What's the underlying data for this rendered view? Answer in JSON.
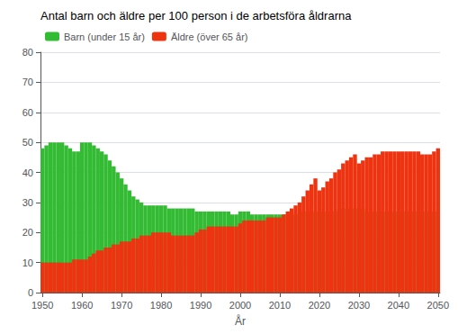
{
  "chart_data": {
    "type": "bar",
    "title": "Antal barn och äldre per 100 person i de arbetsföra åldrarna",
    "xlabel": "År",
    "stacked": true,
    "grid": true,
    "legend": "upper left",
    "x": [
      1950,
      1951,
      1952,
      1953,
      1954,
      1955,
      1956,
      1957,
      1958,
      1959,
      1960,
      1961,
      1962,
      1963,
      1964,
      1965,
      1966,
      1967,
      1968,
      1969,
      1970,
      1971,
      1972,
      1973,
      1974,
      1975,
      1976,
      1977,
      1978,
      1979,
      1980,
      1981,
      1982,
      1983,
      1984,
      1985,
      1986,
      1987,
      1988,
      1989,
      1990,
      1991,
      1992,
      1993,
      1994,
      1995,
      1996,
      1997,
      1998,
      1999,
      2000,
      2001,
      2002,
      2003,
      2004,
      2005,
      2006,
      2007,
      2008,
      2009,
      2010,
      2011,
      2012,
      2013,
      2014,
      2015,
      2016,
      2017,
      2018,
      2019,
      2020,
      2021,
      2022,
      2023,
      2024,
      2025,
      2026,
      2027,
      2028,
      2029,
      2030,
      2031,
      2032,
      2033,
      2034,
      2035,
      2036,
      2037,
      2038,
      2039,
      2040,
      2041,
      2042,
      2043,
      2044,
      2045,
      2046,
      2047,
      2048,
      2049,
      2050
    ],
    "series": [
      {
        "name": "Barn (under 15 år)",
        "color": "#33bb33",
        "values": [
          48,
          49,
          50,
          50,
          50,
          50,
          49,
          48,
          47,
          47,
          50,
          50,
          50,
          49,
          48,
          47,
          46,
          44,
          42,
          40,
          38,
          36,
          34,
          32,
          31,
          30,
          29,
          29,
          29,
          29,
          29,
          29,
          28,
          28,
          28,
          28,
          28,
          28,
          28,
          27,
          27,
          27,
          27,
          27,
          27,
          27,
          27,
          27,
          26,
          26,
          27,
          27,
          27,
          26,
          26,
          26,
          26,
          26,
          26,
          26,
          26,
          26,
          26,
          26,
          26,
          26,
          27,
          27,
          27,
          27,
          27,
          27,
          27,
          27,
          27,
          28,
          28,
          28,
          28,
          28,
          28,
          28,
          27,
          27,
          27,
          27,
          27,
          27,
          27,
          27,
          27,
          27,
          27,
          27,
          27,
          27,
          27,
          27,
          27,
          27,
          27
        ]
      },
      {
        "name": "Äldre (över 65 år)",
        "color": "#ee3311",
        "values": [
          10,
          10,
          10,
          10,
          10,
          10,
          10,
          10,
          11,
          11,
          11,
          11,
          12,
          13,
          14,
          14,
          15,
          15,
          16,
          16,
          17,
          17,
          17,
          18,
          18,
          19,
          19,
          19,
          20,
          20,
          20,
          20,
          20,
          19,
          19,
          19,
          19,
          19,
          19,
          20,
          21,
          21,
          22,
          22,
          22,
          22,
          22,
          22,
          22,
          22,
          23,
          24,
          24,
          24,
          24,
          24,
          24,
          25,
          25,
          25,
          25,
          26,
          27,
          28,
          29,
          30,
          32,
          34,
          36,
          38,
          34,
          35,
          37,
          38,
          40,
          41,
          43,
          44,
          45,
          46,
          43,
          44,
          45,
          45,
          46,
          46,
          47,
          47,
          47,
          47,
          47,
          47,
          47,
          47,
          47,
          47,
          46,
          46,
          46,
          47,
          48
        ]
      }
    ],
    "xlim": [
      1949.5,
      2050.5
    ],
    "xticks": [
      1950,
      1960,
      1970,
      1980,
      1990,
      2000,
      2010,
      2020,
      2030,
      2040,
      2050
    ],
    "ylim": [
      0,
      80
    ],
    "yticks": [
      0,
      10,
      20,
      30,
      40,
      50,
      60,
      70,
      80
    ]
  }
}
